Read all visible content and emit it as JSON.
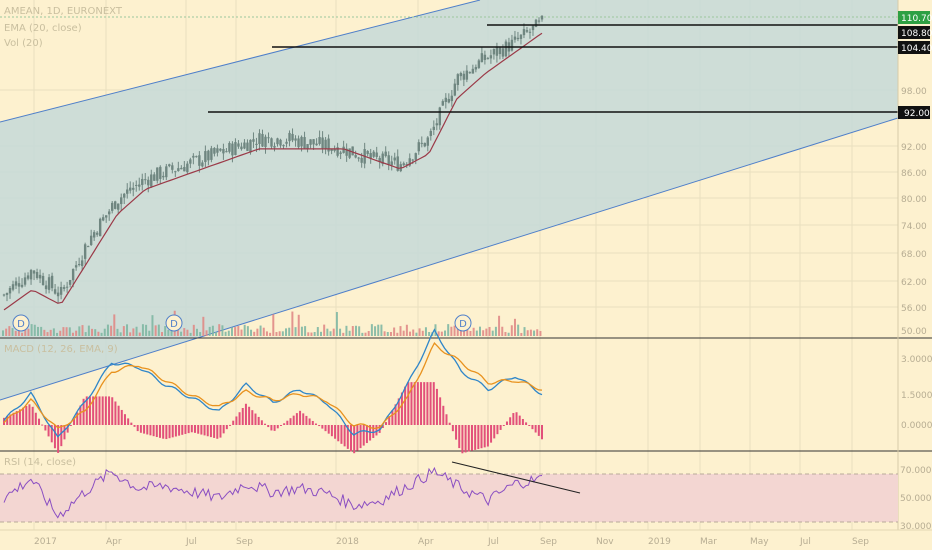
{
  "colors": {
    "background": "#fdf1cf",
    "channel_fill": "#c5d9d8",
    "channel_line": "#4f7fc9",
    "candle": "#6f8680",
    "ema": "#9b3a48",
    "macd_line": "#2f86c9",
    "signal_line": "#e8921e",
    "histogram": "#e2507a",
    "volume_up": "#7fb7a3",
    "volume_down": "#e08a86",
    "rsi_line": "#8a4ec2",
    "rsi_band": "#f3d6d2",
    "level_line": "#111111",
    "last_price_bg": "#2ea043",
    "pane_border": "#333333",
    "grid": "#e9dfbf",
    "axis_text": "#b7ad93"
  },
  "header": {
    "symbol": "AMEAN, 1D, EURONEXT",
    "ema_label": "EMA (20, close)",
    "vol_label": "Vol (20)",
    "macd_label": "MACD (12, 26, EMA, 9)",
    "rsi_label": "RSI (14, close)"
  },
  "price_levels": [
    {
      "label": "110.70",
      "value": 110.7,
      "highlight": true
    },
    {
      "label": "108.80",
      "value": 108.8,
      "highlight": false
    },
    {
      "label": "104.40",
      "value": 104.4,
      "highlight": false
    },
    {
      "label": "92.00",
      "value": 92.0,
      "highlight": false
    }
  ],
  "price_axis_ticks": [
    "98.00",
    "92.00",
    "86.00",
    "80.00",
    "74.00",
    "68.00",
    "62.00",
    "56.00",
    "50.00"
  ],
  "macd_axis_ticks": [
    "3.0000",
    "1.5000",
    "0.0000"
  ],
  "rsi_axis_ticks": [
    "70.0000",
    "50.0000",
    "30.0000"
  ],
  "time_labels": [
    "2017",
    "Apr",
    "Jul",
    "Sep",
    "2018",
    "Apr",
    "Jul",
    "Sep",
    "Nov",
    "2019",
    "Mar",
    "May",
    "Jul",
    "Sep"
  ],
  "dividend_markers": [
    "D",
    "D",
    "D"
  ],
  "chart_data": {
    "type": "line",
    "series": [
      {
        "kind": "price-close",
        "x": [
          "2017-01",
          "2017-02",
          "2017-03",
          "2017-04",
          "2017-05",
          "2017-06",
          "2017-07",
          "2017-08",
          "2017-09",
          "2017-10",
          "2017-11",
          "2017-12",
          "2018-01",
          "2018-02",
          "2018-03",
          "2018-04",
          "2018-05",
          "2018-06",
          "2018-07",
          "2018-08"
        ],
        "values": [
          57,
          62,
          57,
          68,
          76,
          80,
          82,
          84,
          86,
          88,
          88,
          87,
          86,
          84,
          83,
          88,
          100,
          104,
          107,
          111
        ]
      },
      {
        "kind": "ema",
        "x": [
          "2017-01",
          "2017-02",
          "2017-03",
          "2017-04",
          "2017-05",
          "2017-06",
          "2017-07",
          "2017-08",
          "2017-09",
          "2017-10",
          "2017-11",
          "2017-12",
          "2018-01",
          "2018-02",
          "2018-03",
          "2018-04",
          "2018-05",
          "2018-06",
          "2018-07",
          "2018-08"
        ],
        "values": [
          54,
          58,
          55,
          64,
          73,
          78,
          80,
          82,
          84,
          86,
          86,
          86,
          86,
          84,
          82,
          85,
          96,
          101,
          105,
          109
        ]
      }
    ],
    "macd": [
      0.2,
      1.4,
      -0.6,
      1.0,
      2.8,
      2.6,
      1.8,
      1.2,
      0.6,
      1.8,
      1.0,
      1.6,
      1.0,
      -0.4,
      -0.2,
      1.8,
      4.2,
      2.4,
      1.6,
      2.2,
      1.4
    ],
    "macd_signal": [
      0.1,
      1.1,
      -0.2,
      0.6,
      2.4,
      2.7,
      2.0,
      1.3,
      0.8,
      1.5,
      1.1,
      1.4,
      1.1,
      0.0,
      -0.1,
      1.2,
      3.6,
      2.8,
      1.9,
      2.0,
      1.6
    ],
    "rsi": [
      50,
      66,
      35,
      55,
      72,
      58,
      60,
      55,
      50,
      62,
      55,
      58,
      54,
      44,
      48,
      60,
      72,
      58,
      48,
      62,
      66
    ],
    "ylim": [
      50,
      114
    ]
  }
}
